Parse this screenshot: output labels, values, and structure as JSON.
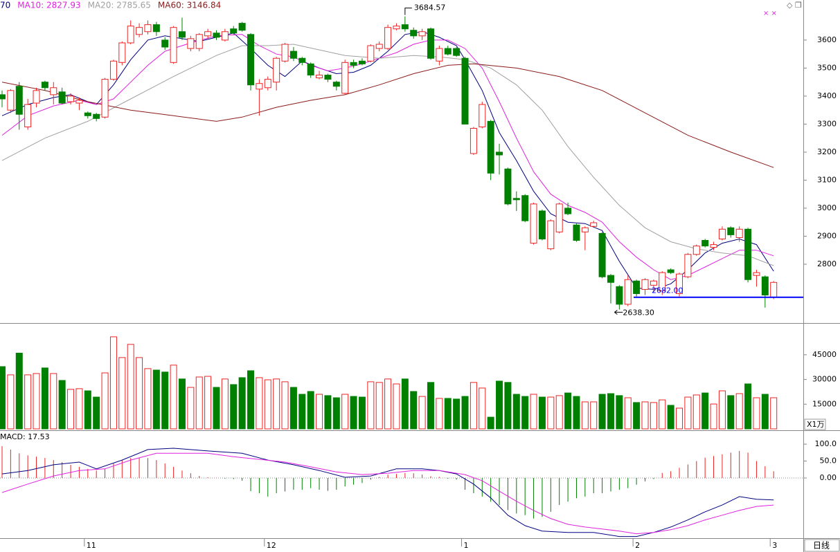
{
  "chart_data": [
    {
      "type": "candlestick",
      "categories": [
        null,
        null,
        null,
        null,
        null,
        null,
        null,
        null,
        null,
        null,
        "11",
        null,
        null,
        null,
        null,
        null,
        null,
        null,
        null,
        null,
        null,
        null,
        null,
        null,
        null,
        null,
        null,
        null,
        null,
        null,
        null,
        "12",
        null,
        null,
        null,
        null,
        null,
        null,
        null,
        null,
        null,
        null,
        null,
        null,
        null,
        null,
        null,
        null,
        null,
        null,
        null,
        null,
        null,
        null,
        "1",
        null,
        null,
        null,
        null,
        null,
        null,
        null,
        null,
        null,
        null,
        null,
        null,
        null,
        null,
        null,
        null,
        null,
        null,
        null,
        "2",
        null,
        null,
        null,
        null,
        null,
        null,
        null,
        null,
        null,
        null,
        null,
        null,
        null,
        null,
        null,
        "3"
      ],
      "open": [
        3405,
        3350,
        3435,
        3290,
        3375,
        3450,
        3405,
        3415,
        3380,
        3375,
        3340,
        3335,
        3325,
        3460,
        3520,
        3590,
        3620,
        3630,
        3655,
        3600,
        3520,
        3630,
        3570,
        3570,
        3615,
        3625,
        3600,
        3640,
        3660,
        3620,
        3425,
        3430,
        3450,
        3525,
        3560,
        3535,
        3515,
        3465,
        3475,
        3450,
        3410,
        3520,
        3525,
        3525,
        3570,
        3570,
        3640,
        3655,
        3635,
        3615,
        3640,
        3525,
        3570,
        3570,
        3535,
        3195,
        3290,
        3310,
        3200,
        3140,
        3035,
        3045,
        2875,
        2990,
        2855,
        2915,
        3000,
        2940,
        2915,
        2935,
        2910,
        2760,
        2720,
        2657,
        2740,
        2710,
        2725,
        2705,
        2780,
        2695,
        2755,
        2835,
        2885,
        2860,
        2890,
        2930,
        2895,
        2925,
        2760,
        2755,
        2682
      ],
      "high": [
        3420,
        3425,
        3450,
        3390,
        3430,
        3455,
        3450,
        3430,
        3410,
        3395,
        3345,
        3340,
        3465,
        3530,
        3595,
        3670,
        3660,
        3670,
        3665,
        3610,
        3650,
        3680,
        3615,
        3625,
        3640,
        3635,
        3640,
        3650,
        3665,
        3625,
        3460,
        3470,
        3540,
        3590,
        3575,
        3540,
        3520,
        3490,
        3480,
        3455,
        3530,
        3530,
        3535,
        3585,
        3595,
        3655,
        3660,
        3684.57,
        3645,
        3640,
        3645,
        3580,
        3580,
        3575,
        3540,
        3290,
        3380,
        3315,
        3230,
        3145,
        3060,
        3050,
        3020,
        2995,
        2960,
        3020,
        3020,
        2945,
        2935,
        2955,
        2915,
        2765,
        2725,
        2760,
        2745,
        2750,
        2745,
        2775,
        2785,
        2770,
        2840,
        2870,
        2890,
        2880,
        2935,
        2935,
        2935,
        2930,
        2780,
        2760,
        2740
      ],
      "low": [
        3360,
        3340,
        3280,
        3280,
        3360,
        3420,
        3370,
        3370,
        3370,
        3350,
        3320,
        3310,
        3320,
        3455,
        3510,
        3585,
        3610,
        3620,
        3615,
        3565,
        3515,
        3600,
        3560,
        3560,
        3605,
        3600,
        3595,
        3620,
        3630,
        3420,
        3330,
        3420,
        3420,
        3520,
        3525,
        3510,
        3465,
        3460,
        3450,
        3420,
        3405,
        3500,
        3510,
        3520,
        3560,
        3565,
        3635,
        3630,
        3605,
        3600,
        3530,
        3510,
        3545,
        3540,
        3300,
        3190,
        3285,
        3100,
        3120,
        3010,
        2990,
        2950,
        2870,
        2885,
        2850,
        2910,
        2975,
        2880,
        2850,
        2930,
        2750,
        2660,
        2638.3,
        2650,
        2685,
        2690,
        2700,
        2690,
        2765,
        2685,
        2750,
        2830,
        2860,
        2850,
        2885,
        2895,
        2880,
        2735,
        2720,
        2645,
        2675
      ],
      "close": [
        3390,
        3420,
        3335,
        3370,
        3420,
        3430,
        3430,
        3375,
        3400,
        3385,
        3330,
        3320,
        3460,
        3525,
        3590,
        3650,
        3645,
        3655,
        3630,
        3575,
        3645,
        3610,
        3605,
        3620,
        3630,
        3610,
        3630,
        3625,
        3635,
        3440,
        3445,
        3460,
        3535,
        3585,
        3535,
        3520,
        3475,
        3475,
        3460,
        3435,
        3520,
        3510,
        3515,
        3580,
        3585,
        3645,
        3650,
        3640,
        3615,
        3630,
        3535,
        3570,
        3550,
        3545,
        3300,
        3285,
        3370,
        3125,
        3190,
        3015,
        3030,
        2955,
        3015,
        2890,
        2955,
        3015,
        2980,
        2885,
        2930,
        2948,
        2755,
        2735,
        2657,
        2745,
        2695,
        2745,
        2740,
        2770,
        2770,
        2765,
        2835,
        2865,
        2865,
        2870,
        2925,
        2905,
        2925,
        2745,
        2770,
        2690,
        2735
      ],
      "up_color": "#ee2222",
      "down_color": "#008000",
      "ylim": [
        2590,
        3743
      ],
      "yticks": [
        2800,
        2900,
        3000,
        3100,
        3200,
        3300,
        3400,
        3500,
        3600
      ],
      "lines": [
        {
          "label": "70",
          "color": "#000080",
          "x": [
            0,
            3,
            6,
            8,
            10,
            11,
            13,
            15,
            17,
            19,
            21,
            23,
            25,
            27,
            29,
            31,
            33,
            35,
            37,
            39,
            41,
            43,
            45,
            47,
            49,
            51,
            53,
            54,
            56,
            58,
            60,
            62,
            64,
            66,
            68,
            70,
            72,
            74,
            76,
            78,
            80,
            82,
            84,
            86,
            88,
            90
          ],
          "values": [
            3330,
            3370,
            3395,
            3405,
            3380,
            3370,
            3440,
            3530,
            3600,
            3615,
            3605,
            3595,
            3610,
            3625,
            3570,
            3510,
            3470,
            3525,
            3500,
            3480,
            3485,
            3510,
            3560,
            3620,
            3630,
            3610,
            3580,
            3530,
            3420,
            3270,
            3170,
            3060,
            2980,
            2950,
            2945,
            2920,
            2810,
            2715,
            2710,
            2730,
            2780,
            2840,
            2875,
            2890,
            2870,
            2775
          ]
        },
        {
          "label": "MA10: 2827.93",
          "color": "#e020e0",
          "x": [
            0,
            3,
            6,
            9,
            11,
            13,
            15,
            17,
            19,
            22,
            25,
            28,
            30,
            32,
            34,
            36,
            38,
            40,
            42,
            44,
            46,
            48,
            50,
            52,
            54,
            56,
            58,
            60,
            62,
            64,
            66,
            68,
            70,
            72,
            74,
            76,
            78,
            80,
            82,
            84,
            86,
            88,
            90
          ],
          "values": [
            3260,
            3330,
            3365,
            3385,
            3370,
            3390,
            3450,
            3510,
            3560,
            3590,
            3615,
            3620,
            3580,
            3550,
            3540,
            3510,
            3490,
            3500,
            3515,
            3535,
            3555,
            3585,
            3600,
            3600,
            3570,
            3500,
            3380,
            3250,
            3130,
            3050,
            3010,
            2985,
            2950,
            2880,
            2825,
            2780,
            2745,
            2760,
            2790,
            2820,
            2850,
            2850,
            2830
          ]
        },
        {
          "label": "MA20: 2785.65",
          "color": "#a0a0a0",
          "x": [
            0,
            5,
            10,
            15,
            20,
            25,
            28,
            31,
            34,
            37,
            40,
            44,
            48,
            51,
            54,
            57,
            60,
            63,
            66,
            69,
            72,
            75,
            78,
            81,
            84,
            87,
            90
          ],
          "values": [
            3170,
            3250,
            3310,
            3390,
            3470,
            3545,
            3580,
            3580,
            3585,
            3565,
            3545,
            3535,
            3545,
            3540,
            3530,
            3500,
            3440,
            3350,
            3220,
            3110,
            3010,
            2930,
            2880,
            2855,
            2840,
            2830,
            2795
          ]
        },
        {
          "label": "MA60: 3146.84",
          "color": "#8b1a1a",
          "x": [
            0,
            5,
            10,
            15,
            20,
            25,
            28,
            32,
            36,
            40,
            44,
            48,
            52,
            55,
            60,
            65,
            70,
            75,
            80,
            85,
            90
          ],
          "values": [
            3450,
            3420,
            3380,
            3350,
            3330,
            3310,
            3325,
            3360,
            3385,
            3405,
            3440,
            3480,
            3510,
            3515,
            3500,
            3470,
            3420,
            3340,
            3260,
            3200,
            3145
          ]
        }
      ],
      "peak_label": 3684.57,
      "low_label": {
        "value": 2638.3,
        "label": "2638.30"
      },
      "support": {
        "value": 2682,
        "label": "2682.00",
        "color": "#0000ff"
      }
    },
    {
      "type": "volume",
      "values": [
        37800,
        32800,
        46000,
        32800,
        33600,
        37000,
        33600,
        29400,
        24000,
        24400,
        23100,
        19300,
        34000,
        55900,
        43300,
        51300,
        43300,
        36600,
        35700,
        34500,
        38700,
        30300,
        25200,
        31500,
        31900,
        25200,
        30300,
        26900,
        31100,
        35300,
        31100,
        29800,
        30300,
        28600,
        25200,
        21000,
        22700,
        21000,
        20200,
        18900,
        21000,
        19700,
        19300,
        28600,
        28200,
        30300,
        27300,
        30300,
        22700,
        19700,
        28200,
        18500,
        18500,
        18100,
        19700,
        28200,
        24800,
        7100,
        29000,
        28200,
        21000,
        19700,
        21000,
        19300,
        19300,
        20200,
        21800,
        19700,
        16400,
        16400,
        21000,
        21400,
        20200,
        18900,
        16000,
        16400,
        16000,
        17600,
        14300,
        12600,
        19300,
        20600,
        21800,
        15100,
        23100,
        20200,
        21400,
        27300,
        18900,
        21000,
        18900
      ],
      "ylim": [
        0,
        63000
      ],
      "yticks": [
        15000,
        30000,
        45000
      ],
      "unit_label": "X1万"
    },
    {
      "type": "macd",
      "title": "MACD: 17.53",
      "histogram": [
        94,
        84,
        73,
        67,
        63,
        59,
        53,
        47,
        39,
        33,
        27,
        22,
        27,
        43,
        53,
        59,
        59,
        59,
        53,
        43,
        33,
        22,
        14,
        6,
        2,
        1,
        -2,
        -3,
        -8,
        -39,
        -45,
        -55,
        -45,
        -40,
        -35,
        -35,
        -30,
        -35,
        -38,
        -35,
        -25,
        -20,
        -15,
        -5,
        3,
        10,
        12,
        15,
        14,
        10,
        5,
        3,
        -2,
        -5,
        -35,
        -45,
        -55,
        -70,
        -80,
        -95,
        -105,
        -110,
        -120,
        -115,
        -100,
        -80,
        -70,
        -60,
        -55,
        -45,
        -45,
        -40,
        -35,
        -30,
        -20,
        -10,
        -3,
        15,
        20,
        30,
        40,
        50,
        60,
        65,
        70,
        75,
        80,
        75,
        50,
        35,
        20
      ],
      "pos_color": "#ee2222",
      "neg_color": "#008000",
      "lines": [
        {
          "color": "#000080",
          "x": [
            0,
            3,
            6,
            9,
            11,
            14,
            17,
            20,
            24,
            28,
            31,
            34,
            37,
            40,
            43,
            46,
            49,
            51,
            53,
            55,
            57,
            59,
            61,
            63,
            66,
            69,
            72,
            74,
            76,
            78,
            80,
            82,
            84,
            86,
            88,
            90
          ],
          "values": [
            12,
            22,
            39,
            47,
            27,
            53,
            84,
            88,
            80,
            73,
            53,
            39,
            22,
            2,
            6,
            27,
            27,
            22,
            12,
            -18,
            -59,
            -110,
            -141,
            -157,
            -161,
            -161,
            -173,
            -173,
            -161,
            -145,
            -124,
            -100,
            -80,
            -55,
            -63,
            -65
          ]
        },
        {
          "color": "#e020e0",
          "x": [
            0,
            3,
            6,
            9,
            12,
            15,
            18,
            21,
            24,
            27,
            30,
            33,
            36,
            39,
            42,
            45,
            48,
            51,
            54,
            56,
            58,
            60,
            62,
            64,
            66,
            68,
            70,
            72,
            74,
            76,
            78,
            80,
            82,
            84,
            86,
            88,
            90
          ],
          "values": [
            -43,
            -18,
            6,
            22,
            27,
            53,
            73,
            73,
            73,
            63,
            55,
            47,
            33,
            18,
            10,
            14,
            22,
            22,
            10,
            -8,
            -39,
            -69,
            -96,
            -120,
            -137,
            -145,
            -151,
            -157,
            -165,
            -161,
            -153,
            -141,
            -124,
            -110,
            -96,
            -84,
            -80
          ]
        }
      ],
      "ylim": [
        -178,
        135
      ],
      "yticks": [
        {
          "value": 0,
          "label": "0.00"
        },
        {
          "value": 50,
          "label": "50.0"
        },
        {
          "value": 100,
          "label": "100.0"
        }
      ]
    }
  ],
  "period_label": "日线"
}
